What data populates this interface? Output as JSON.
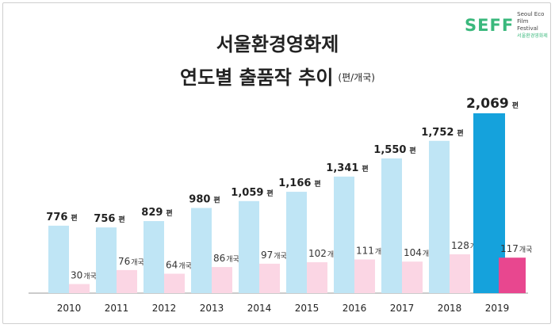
{
  "logo": {
    "mark": "SEFF",
    "line1": "Seoul Eco Film",
    "line2": "Festival",
    "line3": "서울환경영화제"
  },
  "title": {
    "line1": "서울환경영화제",
    "line2": "연도별 출품작 추이",
    "unit": "(편/개국)"
  },
  "colors": {
    "films": "#bfe5f5",
    "countries": "#fbd6e4",
    "films_highlight": "#15a2dc",
    "countries_highlight": "#e8478f",
    "axis": "#9a9a9a"
  },
  "chart_data": {
    "type": "bar",
    "categories": [
      "2010",
      "2011",
      "2012",
      "2013",
      "2014",
      "2015",
      "2016",
      "2017",
      "2018",
      "2019"
    ],
    "series": [
      {
        "unit_label": "편",
        "values": [
          776,
          756,
          829,
          980,
          1059,
          1166,
          1341,
          1550,
          1752,
          2069
        ],
        "display": [
          "776",
          "756",
          "829",
          "980",
          "1,059",
          "1,166",
          "1,341",
          "1,550",
          "1,752",
          "2,069"
        ]
      },
      {
        "unit_label": "개국",
        "values": [
          30,
          76,
          64,
          86,
          97,
          102,
          111,
          104,
          128,
          117
        ],
        "display": [
          "30",
          "76",
          "64",
          "86",
          "97",
          "102",
          "111",
          "104",
          "128",
          "117"
        ]
      }
    ],
    "ylim": [
      0,
      2069
    ],
    "highlight_category": "2019",
    "grid": false
  }
}
